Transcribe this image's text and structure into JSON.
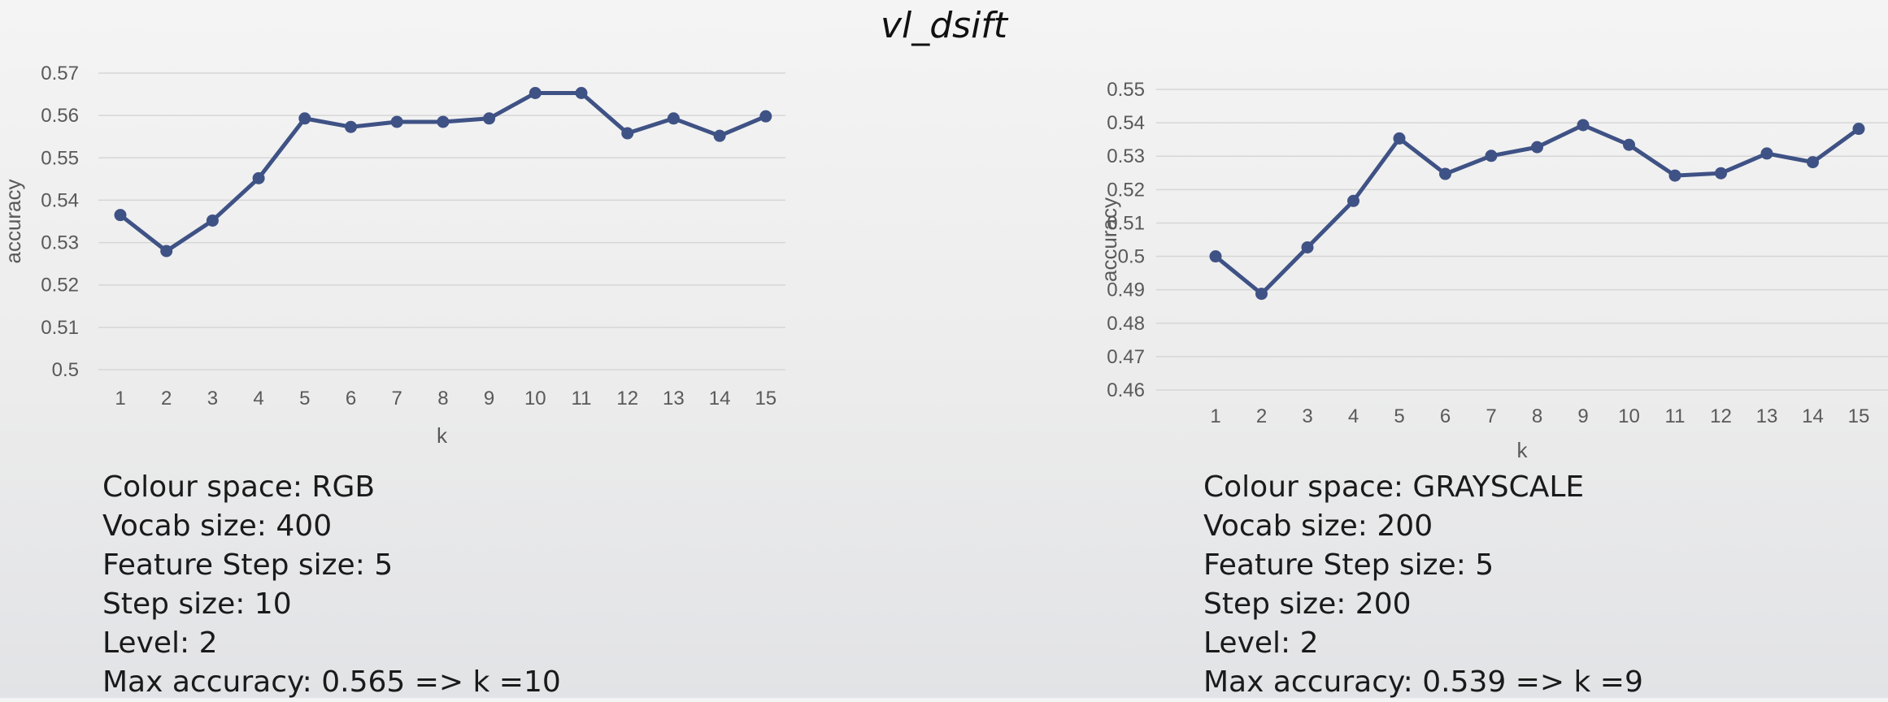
{
  "title": "vl_dsift",
  "chart_data": [
    {
      "type": "line",
      "title": "",
      "xlabel": "k",
      "ylabel": "accuracy",
      "categories": [
        "1",
        "2",
        "3",
        "4",
        "5",
        "6",
        "7",
        "8",
        "9",
        "10",
        "11",
        "12",
        "13",
        "14",
        "15"
      ],
      "values": [
        0.5365,
        0.528,
        0.5352,
        0.5452,
        0.5593,
        0.5573,
        0.5585,
        0.5585,
        0.5593,
        0.5653,
        0.5653,
        0.5558,
        0.5593,
        0.5552,
        0.5598
      ],
      "ylim": [
        0.5,
        0.57
      ],
      "yticks": [
        "0.5",
        "0.51",
        "0.52",
        "0.53",
        "0.54",
        "0.55",
        "0.56",
        "0.57"
      ],
      "grid": true,
      "color": "#3f5285"
    },
    {
      "type": "line",
      "title": "",
      "xlabel": "k",
      "ylabel": "accuracy",
      "categories": [
        "1",
        "2",
        "3",
        "4",
        "5",
        "6",
        "7",
        "8",
        "9",
        "10",
        "11",
        "12",
        "13",
        "14",
        "15"
      ],
      "values": [
        0.5,
        0.4888,
        0.5027,
        0.5166,
        0.5353,
        0.5247,
        0.5301,
        0.5327,
        0.5393,
        0.5334,
        0.5242,
        0.5249,
        0.5308,
        0.5282,
        0.5382
      ],
      "ylim": [
        0.46,
        0.55
      ],
      "yticks": [
        "0.46",
        "0.47",
        "0.48",
        "0.49",
        "0.5",
        "0.51",
        "0.52",
        "0.53",
        "0.54",
        "0.55"
      ],
      "grid": true,
      "color": "#3f5285"
    }
  ],
  "info_left": {
    "colour_space": "Colour space: RGB",
    "vocab_size": "Vocab size: 400",
    "feature_step": "Feature Step size: 5",
    "step_size": "Step size: 10",
    "level": "Level: 2",
    "max_accuracy": "Max accuracy: 0.565 => k =10"
  },
  "info_right": {
    "colour_space": "Colour space: GRAYSCALE",
    "vocab_size": "Vocab size: 200",
    "feature_step": "Feature Step size: 5",
    "step_size": "Step size: 200",
    "level": "Level: 2",
    "max_accuracy": "Max accuracy: 0.539 => k =9"
  }
}
